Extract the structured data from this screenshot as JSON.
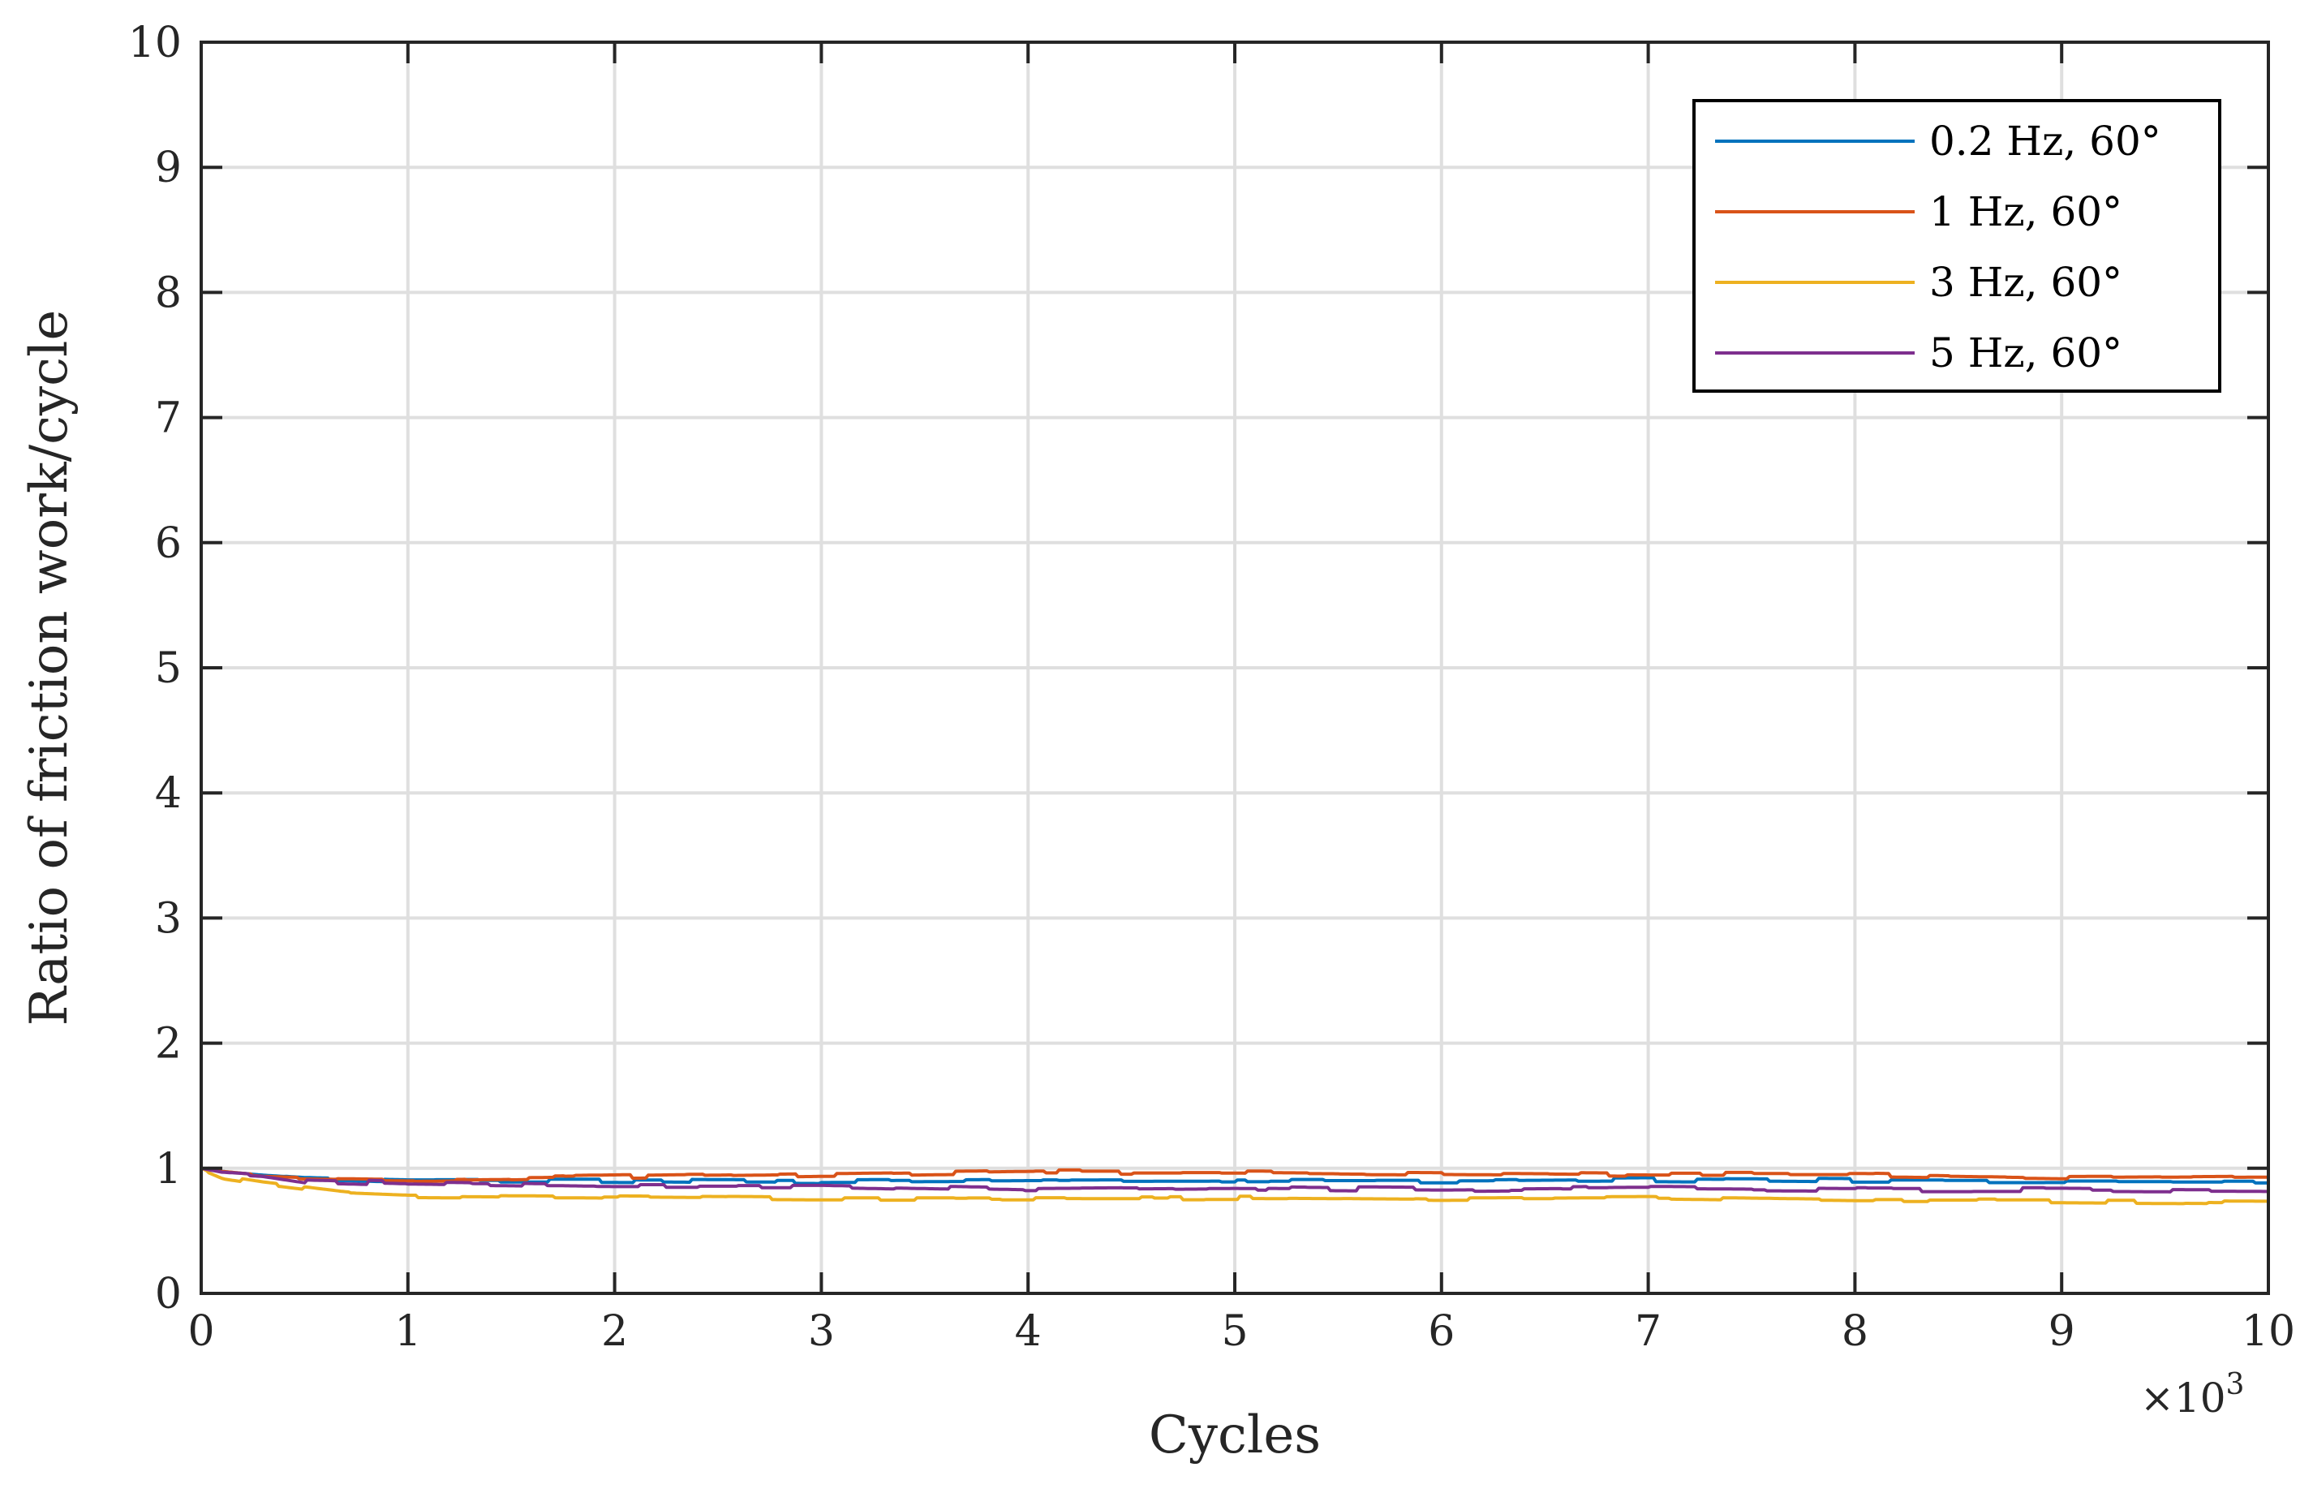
{
  "chart_data": {
    "type": "line",
    "title": "",
    "xlabel": "Cycles",
    "ylabel": "Ratio of friction work/cycle",
    "x_multiplier_label": "×10",
    "x_multiplier_exponent": "3",
    "xlim": [
      0,
      10
    ],
    "ylim": [
      0,
      10
    ],
    "xticks": [
      0,
      1,
      2,
      3,
      4,
      5,
      6,
      7,
      8,
      9,
      10
    ],
    "yticks": [
      0,
      1,
      2,
      3,
      4,
      5,
      6,
      7,
      8,
      9,
      10
    ],
    "xtick_labels": [
      "0",
      "1",
      "2",
      "3",
      "4",
      "5",
      "6",
      "7",
      "8",
      "9",
      "10"
    ],
    "ytick_labels": [
      "0",
      "1",
      "2",
      "3",
      "4",
      "5",
      "6",
      "7",
      "8",
      "9",
      "10"
    ],
    "grid": true,
    "legend_position": "top-right",
    "series": [
      {
        "name": "0.2 Hz, 60°",
        "color": "#0072BD",
        "x": [
          0,
          0.1,
          0.3,
          0.5,
          1,
          2,
          3,
          4,
          5,
          6,
          7,
          8,
          9,
          10
        ],
        "y": [
          1.0,
          0.97,
          0.94,
          0.92,
          0.9,
          0.9,
          0.89,
          0.9,
          0.9,
          0.9,
          0.91,
          0.9,
          0.9,
          0.9
        ]
      },
      {
        "name": "1 Hz, 60°",
        "color": "#D95319",
        "x": [
          0,
          0.1,
          0.3,
          0.5,
          1,
          2,
          3,
          4,
          5,
          6,
          7,
          8,
          9,
          10
        ],
        "y": [
          1.0,
          0.96,
          0.93,
          0.92,
          0.91,
          0.93,
          0.95,
          0.97,
          0.97,
          0.96,
          0.95,
          0.95,
          0.93,
          0.94
        ]
      },
      {
        "name": "3 Hz, 60°",
        "color": "#EDB120",
        "x": [
          0,
          0.1,
          0.3,
          0.5,
          0.7,
          1,
          2,
          3,
          4,
          5,
          6,
          7,
          8,
          9,
          10
        ],
        "y": [
          1.0,
          0.93,
          0.88,
          0.84,
          0.8,
          0.78,
          0.77,
          0.76,
          0.76,
          0.76,
          0.75,
          0.76,
          0.74,
          0.74,
          0.73
        ]
      },
      {
        "name": "5 Hz, 60°",
        "color": "#7E2F8E",
        "x": [
          0,
          0.1,
          0.3,
          0.5,
          1,
          2,
          3,
          4,
          5,
          6,
          7,
          8,
          9,
          10
        ],
        "y": [
          1.0,
          0.97,
          0.95,
          0.9,
          0.88,
          0.86,
          0.86,
          0.83,
          0.84,
          0.83,
          0.84,
          0.83,
          0.83,
          0.82
        ]
      }
    ]
  }
}
